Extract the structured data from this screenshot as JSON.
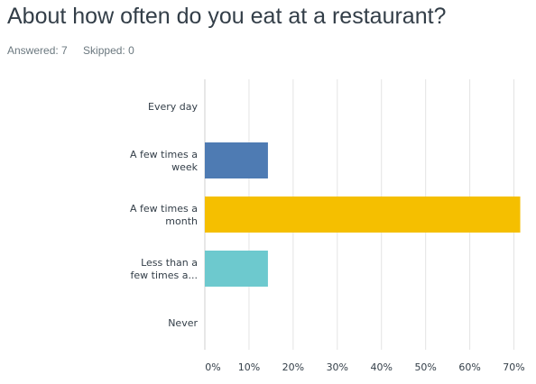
{
  "survey": {
    "question": "About how often do you eat at a restaurant?",
    "answered": "Answered: 7",
    "skipped": "Skipped: 0"
  },
  "chart_data": {
    "type": "bar",
    "orientation": "horizontal",
    "categories": [
      [
        "Every day"
      ],
      [
        "A few times a",
        "week"
      ],
      [
        "A few times a",
        "month"
      ],
      [
        "Less than a",
        "few times a..."
      ],
      [
        "Never"
      ]
    ],
    "values": [
      0,
      14.29,
      71.43,
      14.29,
      0
    ],
    "colors": [
      "#4e7bb3",
      "#4e7bb3",
      "#f5bf00",
      "#6dc9ce",
      "#9b9b9b"
    ],
    "xticks": [
      "0%",
      "10%",
      "20%",
      "30%",
      "40%",
      "50%",
      "60%",
      "70%"
    ],
    "xlim": [
      0,
      75
    ],
    "grid": true
  }
}
